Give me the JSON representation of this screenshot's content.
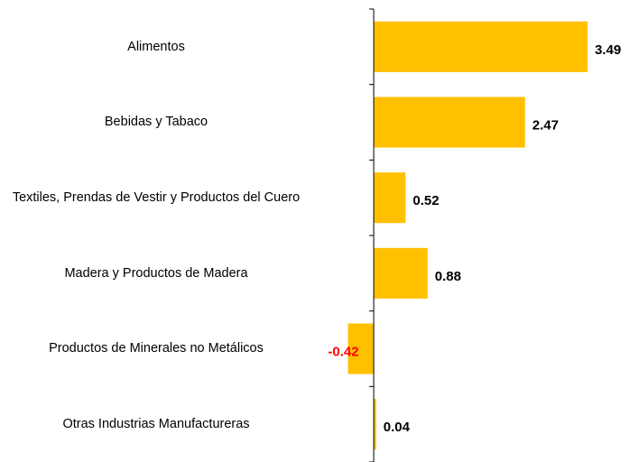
{
  "chart_data": {
    "type": "bar",
    "orientation": "horizontal",
    "categories": [
      "Alimentos",
      "Bebidas y Tabaco",
      "Textiles, Prendas de Vestir y Productos del Cuero",
      "Madera y Productos de Madera",
      "Productos de Minerales no Metálicos",
      "Otras Industrias Manufactureras"
    ],
    "values": [
      3.49,
      2.47,
      0.52,
      0.88,
      -0.42,
      0.04
    ],
    "color": "#ffc000",
    "label_color": "#000000",
    "negative_label_color": "#ff0000",
    "xlim": [
      -6.1,
      4.33
    ]
  }
}
